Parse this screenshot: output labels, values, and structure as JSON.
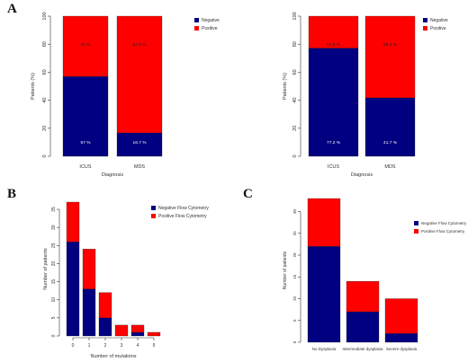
{
  "panel_labels": {
    "a": "A",
    "b": "B",
    "c": "C"
  },
  "colors": {
    "negative": "#000080",
    "positive": "#ff0000"
  },
  "chart_data": [
    {
      "type": "bar",
      "stacked": true,
      "categories": [
        "ICUS",
        "MDS"
      ],
      "series": [
        {
          "name": "Negative",
          "values": [
            57,
            16.7
          ],
          "labels": [
            "57 %",
            "16.7 %"
          ]
        },
        {
          "name": "Positive",
          "values": [
            43,
            83.3
          ],
          "labels": [
            "43 %",
            "83.3 %"
          ]
        }
      ],
      "xlabel": "Diagnosis",
      "ylabel": "Patients (%)",
      "ylim": [
        0,
        100
      ],
      "yticks": [
        0,
        20,
        40,
        60,
        80,
        100
      ],
      "legend": "top-right"
    },
    {
      "type": "bar",
      "stacked": true,
      "categories": [
        "ICUS",
        "MDS"
      ],
      "series": [
        {
          "name": "Negative",
          "values": [
            77.2,
            41.7
          ],
          "labels": [
            "77.2 %",
            "41.7 %"
          ]
        },
        {
          "name": "Positive",
          "values": [
            22.8,
            58.3
          ],
          "labels": [
            "22.8 %",
            "58.3 %"
          ]
        }
      ],
      "xlabel": "Diagnosis",
      "ylabel": "Patients (%)",
      "ylim": [
        0,
        100
      ],
      "yticks": [
        0,
        20,
        40,
        60,
        80,
        100
      ],
      "legend": "top-right"
    },
    {
      "type": "bar",
      "stacked": true,
      "categories": [
        "0",
        "1",
        "2",
        "3",
        "4",
        "5"
      ],
      "series": [
        {
          "name": "Negative Flow Cytometry",
          "values": [
            26,
            13,
            5,
            0,
            1,
            0
          ]
        },
        {
          "name": "Positive Flow Cytometry",
          "values": [
            11,
            11,
            7,
            3,
            2,
            1
          ]
        }
      ],
      "xlabel": "Number of mutations",
      "ylabel": "Number of patients",
      "ylim": [
        0,
        37
      ],
      "yticks": [
        0,
        5,
        10,
        15,
        20,
        25,
        30,
        35
      ],
      "legend": "top-right"
    },
    {
      "type": "bar",
      "stacked": true,
      "categories": [
        "No Dysplasia",
        "Intermediate dysplasia",
        "Severe dysplasia"
      ],
      "series": [
        {
          "name": "Negative Flow Cytometry",
          "values": [
            22,
            7,
            2
          ]
        },
        {
          "name": "Positive Flow Cytometry",
          "values": [
            11,
            7,
            8
          ]
        }
      ],
      "xlabel": "",
      "ylabel": "Number of patients",
      "ylim": [
        0,
        33
      ],
      "yticks": [
        0,
        5,
        10,
        15,
        20,
        25,
        30
      ],
      "legend": "top-right"
    }
  ]
}
